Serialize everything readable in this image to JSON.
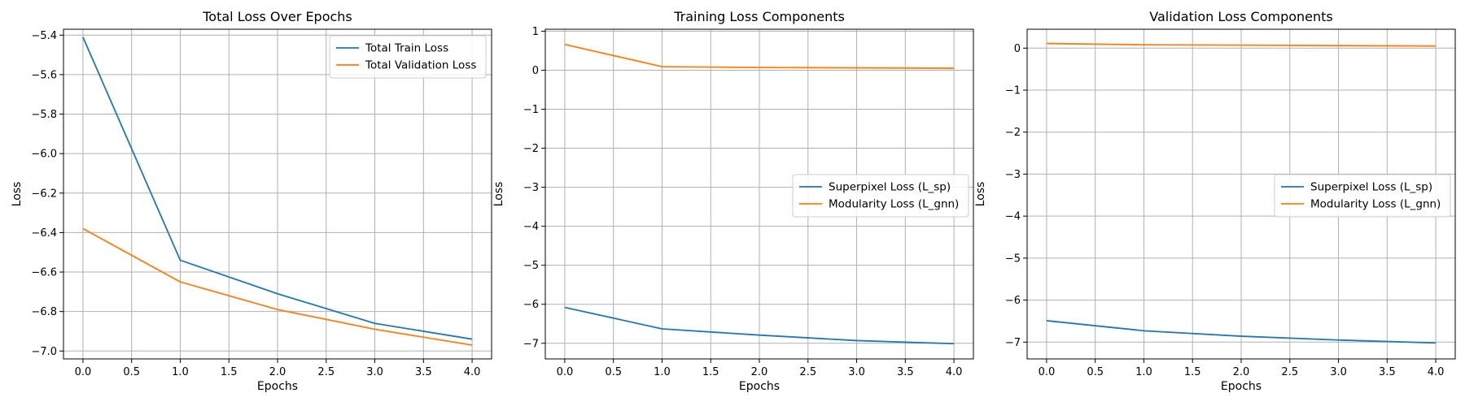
{
  "chart_data": [
    {
      "type": "line",
      "title": "Total Loss Over Epochs",
      "xlabel": "Epochs",
      "ylabel": "Loss",
      "x": [
        0,
        1,
        2,
        3,
        4
      ],
      "xlim": [
        -0.2,
        4.2
      ],
      "ylim": [
        -7.04,
        -5.37
      ],
      "xticks": [
        0,
        0.5,
        1,
        1.5,
        2,
        2.5,
        3,
        3.5,
        4
      ],
      "xtick_labels": [
        "0.0",
        "0.5",
        "1.0",
        "1.5",
        "2.0",
        "2.5",
        "3.0",
        "3.5",
        "4.0"
      ],
      "yticks": [
        -5.4,
        -5.6,
        -5.8,
        -6.0,
        -6.2,
        -6.4,
        -6.6,
        -6.8,
        -7.0
      ],
      "ytick_labels": [
        "−5.4",
        "−5.6",
        "−5.8",
        "−6.0",
        "−6.2",
        "−6.4",
        "−6.6",
        "−6.8",
        "−7.0"
      ],
      "grid": true,
      "legend_position": "top-right",
      "series": [
        {
          "name": "Total Train Loss",
          "color": "#1f77b4",
          "values": [
            -5.41,
            -6.54,
            -6.71,
            -6.86,
            -6.94
          ]
        },
        {
          "name": "Total Validation Loss",
          "color": "#ff7f0e",
          "values": [
            -6.38,
            -6.65,
            -6.79,
            -6.89,
            -6.97
          ]
        }
      ]
    },
    {
      "type": "line",
      "title": "Training Loss Components",
      "xlabel": "Epochs",
      "ylabel": "Loss",
      "x": [
        0,
        1,
        2,
        3,
        4
      ],
      "xlim": [
        -0.2,
        4.2
      ],
      "ylim": [
        -7.4,
        1.05
      ],
      "xticks": [
        0,
        0.5,
        1,
        1.5,
        2,
        2.5,
        3,
        3.5,
        4
      ],
      "xtick_labels": [
        "0.0",
        "0.5",
        "1.0",
        "1.5",
        "2.0",
        "2.5",
        "3.0",
        "3.5",
        "4.0"
      ],
      "yticks": [
        1,
        0,
        -1,
        -2,
        -3,
        -4,
        -5,
        -6,
        -7
      ],
      "ytick_labels": [
        "1",
        "0",
        "−1",
        "−2",
        "−3",
        "−4",
        "−5",
        "−6",
        "−7"
      ],
      "grid": true,
      "legend_position": "center-right",
      "series": [
        {
          "name": "Superpixel Loss (L_sp)",
          "color": "#1f77b4",
          "values": [
            -6.08,
            -6.63,
            -6.79,
            -6.93,
            -7.01
          ]
        },
        {
          "name": "Modularity Loss (L_gnn)",
          "color": "#ff7f0e",
          "values": [
            0.66,
            0.09,
            0.07,
            0.06,
            0.05
          ]
        }
      ]
    },
    {
      "type": "line",
      "title": "Validation Loss Components",
      "xlabel": "Epochs",
      "ylabel": "Loss",
      "x": [
        0,
        1,
        2,
        3,
        4
      ],
      "xlim": [
        -0.2,
        4.2
      ],
      "ylim": [
        -7.4,
        0.45
      ],
      "xticks": [
        0,
        0.5,
        1,
        1.5,
        2,
        2.5,
        3,
        3.5,
        4
      ],
      "xtick_labels": [
        "0.0",
        "0.5",
        "1.0",
        "1.5",
        "2.0",
        "2.5",
        "3.0",
        "3.5",
        "4.0"
      ],
      "yticks": [
        0,
        -1,
        -2,
        -3,
        -4,
        -5,
        -6,
        -7
      ],
      "ytick_labels": [
        "0",
        "−1",
        "−2",
        "−3",
        "−4",
        "−5",
        "−6",
        "−7"
      ],
      "grid": true,
      "legend_position": "center-right",
      "series": [
        {
          "name": "Superpixel Loss (L_sp)",
          "color": "#1f77b4",
          "values": [
            -6.49,
            -6.73,
            -6.86,
            -6.95,
            -7.02
          ]
        },
        {
          "name": "Modularity Loss (L_gnn)",
          "color": "#ff7f0e",
          "values": [
            0.11,
            0.08,
            0.07,
            0.06,
            0.05
          ]
        }
      ]
    }
  ]
}
